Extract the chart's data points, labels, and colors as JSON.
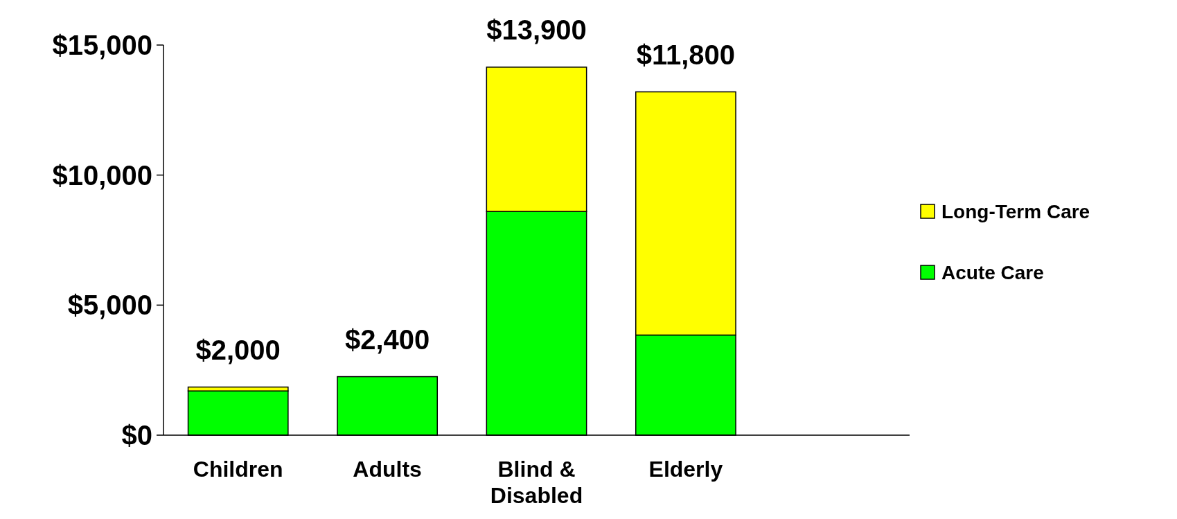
{
  "chart_data": {
    "type": "bar",
    "stacked": true,
    "categories": [
      "Children",
      "Adults",
      "Blind & Disabled",
      "Elderly"
    ],
    "series": [
      {
        "name": "Acute Care",
        "color": "#00ff00",
        "values": [
          1700,
          2250,
          8600,
          3850
        ]
      },
      {
        "name": "Long-Term Care",
        "color": "#ffff00",
        "values": [
          150,
          0,
          5550,
          9350
        ]
      }
    ],
    "annotations": [
      {
        "text": "$2,000",
        "x": "Children",
        "y": 1850
      },
      {
        "text": "$2,400",
        "x": "Adults",
        "y": 2250
      },
      {
        "text": "$13,900",
        "x": "Blind & Disabled",
        "y": 14150
      },
      {
        "text": "$11,800",
        "x": "Elderly",
        "y": 13200
      }
    ],
    "ylim": [
      0,
      15000
    ],
    "yticks": [
      {
        "value": 0,
        "label": "$0"
      },
      {
        "value": 5000,
        "label": "$5,000"
      },
      {
        "value": 10000,
        "label": "$10,000"
      },
      {
        "value": 15000,
        "label": "$15,000"
      }
    ],
    "grid": false,
    "legend": "right"
  }
}
